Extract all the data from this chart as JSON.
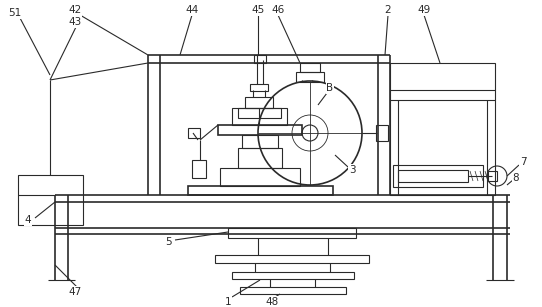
{
  "bg_color": "#ffffff",
  "lc": "#2a2a2a",
  "lw": 0.8,
  "lw2": 1.2,
  "fig_width": 5.42,
  "fig_height": 3.07,
  "dpi": 100
}
